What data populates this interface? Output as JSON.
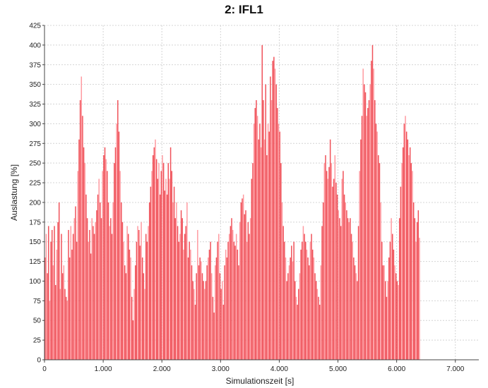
{
  "chart_data": {
    "type": "bar",
    "title": "2: IFL1",
    "xlabel": "Simulationszeit [s]",
    "ylabel": "Auslastung [%]",
    "xlim": [
      0,
      7400
    ],
    "ylim": [
      0,
      425
    ],
    "xticks": [
      0,
      1000,
      2000,
      3000,
      4000,
      5000,
      6000,
      7000
    ],
    "xtick_labels": [
      "0",
      "1.000",
      "2.000",
      "3.000",
      "4.000",
      "5.000",
      "6.000",
      "7.000"
    ],
    "yticks": [
      0,
      25,
      50,
      75,
      100,
      125,
      150,
      175,
      200,
      225,
      250,
      275,
      300,
      325,
      350,
      375,
      400,
      425
    ],
    "ytick_labels": [
      "0",
      "25",
      "50",
      "75",
      "100",
      "125",
      "150",
      "175",
      "200",
      "225",
      "250",
      "275",
      "300",
      "325",
      "350",
      "375",
      "400",
      "425"
    ],
    "grid": true,
    "bar_color": "#f0525a",
    "bar_light_color": "#ff9aa0",
    "x_step": 20,
    "values": [
      130,
      160,
      110,
      170,
      75,
      150,
      165,
      120,
      170,
      95,
      140,
      175,
      200,
      90,
      160,
      110,
      120,
      90,
      80,
      75,
      165,
      130,
      170,
      140,
      160,
      180,
      195,
      150,
      240,
      280,
      330,
      360,
      310,
      270,
      250,
      210,
      180,
      150,
      165,
      135,
      180,
      170,
      160,
      175,
      190,
      210,
      230,
      200,
      180,
      240,
      260,
      270,
      255,
      240,
      200,
      170,
      180,
      160,
      200,
      250,
      270,
      300,
      330,
      290,
      240,
      200,
      175,
      150,
      120,
      110,
      170,
      160,
      140,
      130,
      80,
      50,
      90,
      120,
      150,
      170,
      165,
      145,
      175,
      130,
      110,
      90,
      160,
      150,
      170,
      200,
      220,
      240,
      260,
      270,
      280,
      255,
      230,
      250,
      210,
      240,
      260,
      250,
      215,
      230,
      210,
      250,
      230,
      270,
      240,
      200,
      220,
      180,
      200,
      170,
      150,
      160,
      190,
      180,
      140,
      160,
      170,
      200,
      130,
      150,
      140,
      120,
      100,
      90,
      70,
      110,
      165,
      120,
      130,
      125,
      110,
      100,
      90,
      100,
      120,
      130,
      140,
      150,
      110,
      80,
      60,
      120,
      130,
      150,
      160,
      110,
      90,
      100,
      70,
      120,
      140,
      130,
      150,
      160,
      170,
      180,
      165,
      150,
      145,
      160,
      140,
      120,
      175,
      200,
      205,
      210,
      185,
      190,
      150,
      175,
      160,
      180,
      230,
      250,
      300,
      320,
      330,
      310,
      280,
      300,
      270,
      400,
      330,
      280,
      350,
      260,
      300,
      290,
      360,
      330,
      380,
      385,
      370,
      350,
      320,
      300,
      290,
      250,
      200,
      170,
      150,
      130,
      100,
      110,
      120,
      130,
      145,
      125,
      150,
      100,
      80,
      70,
      90,
      110,
      140,
      150,
      170,
      160,
      150,
      140,
      130,
      120,
      150,
      160,
      140,
      130,
      110,
      100,
      90,
      80,
      70,
      120,
      170,
      200,
      250,
      260,
      240,
      230,
      245,
      280,
      250,
      220,
      230,
      260,
      225,
      210,
      190,
      180,
      170,
      230,
      240,
      210,
      200,
      190,
      180,
      175,
      180,
      160,
      150,
      130,
      120,
      110,
      100,
      170,
      240,
      280,
      310,
      370,
      350,
      340,
      310,
      320,
      330,
      350,
      380,
      400,
      370,
      330,
      300,
      290,
      260,
      250,
      200,
      150,
      120,
      120,
      100,
      80,
      100,
      130,
      150,
      180,
      160,
      140,
      120,
      110,
      100,
      95,
      180,
      220,
      250,
      270,
      300,
      310,
      290,
      280,
      260,
      270,
      250,
      240,
      200,
      180,
      150,
      175,
      190,
      155
    ]
  }
}
